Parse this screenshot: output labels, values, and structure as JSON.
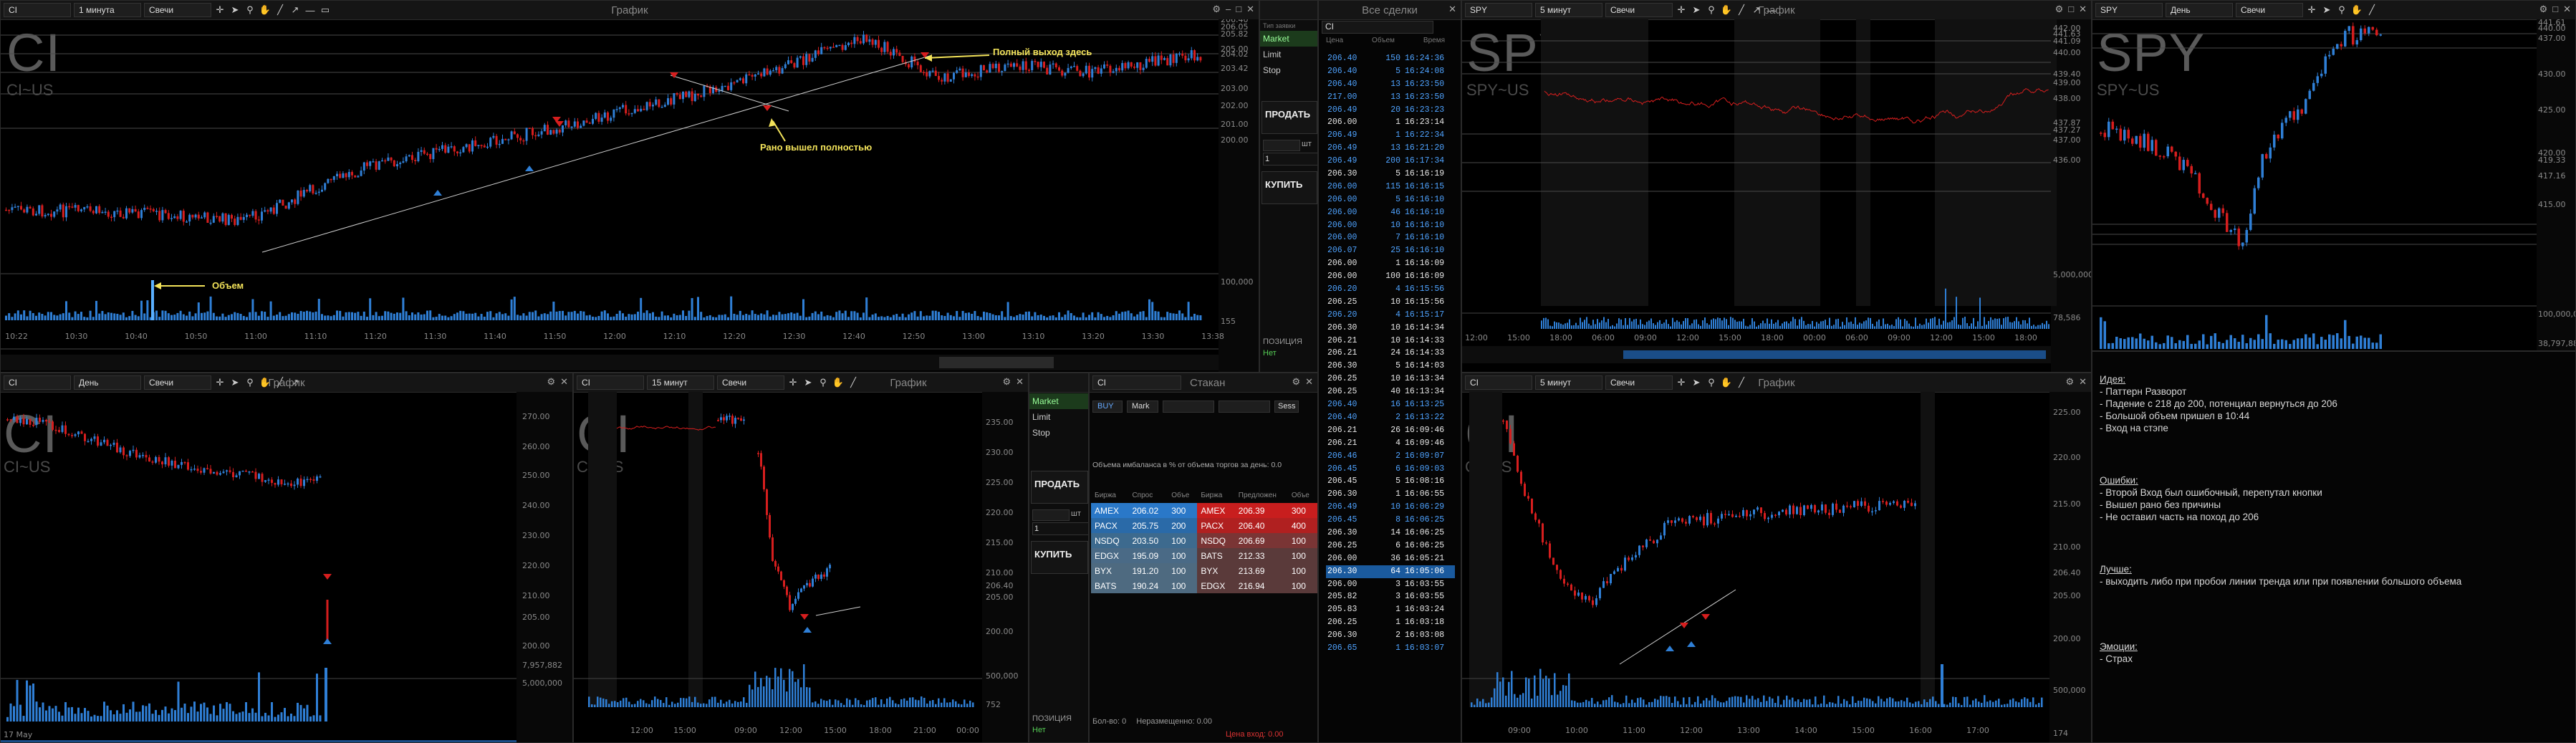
{
  "colors": {
    "up": "#2f7fd6",
    "down": "#d61e1e",
    "annotation": "#f3e35a",
    "volume": "#2f7fd6",
    "bg": "#000000"
  },
  "p1": {
    "symbol": "CI",
    "interval": "1 минута",
    "ctype": "Свечи",
    "title": "График",
    "big": "CI",
    "sub": "CI~US",
    "prices": [
      "206.40",
      "206.05",
      "205.82",
      "205.00",
      "204.02",
      "203.42",
      "203.00",
      "202.00",
      "201.00",
      "200.00"
    ],
    "vol_labels": [
      "100,000",
      "155"
    ],
    "times": [
      "10:22",
      "10:30",
      "10:40",
      "10:50",
      "11:00",
      "11:10",
      "11:20",
      "11:30",
      "11:40",
      "11:50",
      "12:00",
      "12:10",
      "12:20",
      "12:30",
      "12:40",
      "12:50",
      "13:00",
      "13:10",
      "13:20",
      "13:30",
      "13:38"
    ],
    "annotations": {
      "exit": "Полный выход здесь",
      "early": "Рано вышел полностью",
      "vol": "Объем"
    }
  },
  "p2": {
    "symbol": "CI",
    "interval": "День",
    "ctype": "Свечи",
    "title": "График",
    "big": "CI",
    "sub": "CI~US",
    "prices": [
      "270.00",
      "260.00",
      "250.00",
      "240.00",
      "230.00",
      "220.00",
      "210.00",
      "205.00",
      "200.00"
    ],
    "vol_labels": [
      "7,957,882",
      "5,000,000"
    ],
    "date": "17 May"
  },
  "p3": {
    "symbol": "CI",
    "interval": "15 минут",
    "ctype": "Свечи",
    "title": "График",
    "big": "CI",
    "sub": "CI~US",
    "prices": [
      "235.00",
      "230.00",
      "225.00",
      "220.00",
      "215.00",
      "210.00",
      "206.40",
      "205.00",
      "200.00"
    ],
    "vol_labels": [
      "500,000",
      "752"
    ],
    "times": [
      "12:00",
      "15:00",
      "09:00",
      "12:00",
      "15:00",
      "18:00",
      "21:00",
      "00:00"
    ]
  },
  "order1": {
    "types": [
      "Market",
      "Limit",
      "Stop"
    ],
    "sell": "ПРОДАТЬ",
    "buy": "КУПИТЬ",
    "qty": "1",
    "unit": "шт",
    "pos_label": "ПОЗИЦИЯ",
    "pos_value": "Нет"
  },
  "order2": {
    "types": [
      "Market",
      "Limit",
      "Stop"
    ],
    "sell": "ПРОДАТЬ",
    "buy": "КУПИТЬ",
    "qty": "1",
    "unit": "шт",
    "pos_label": "ПОЗИЦИЯ",
    "pos_value": "Нет"
  },
  "l2": {
    "symbol": "CI",
    "title": "Стакан",
    "side": "BUY",
    "mkt": "Mark",
    "ask_label": "Sess",
    "imbalance": "Объема имбаланса в % от объема торгов за день: 0.0",
    "headers": [
      "Биржа",
      "Спрос",
      "Объе",
      "Биржа",
      "Предложен",
      "Объе"
    ],
    "bids": [
      [
        "AMEX",
        "206.02",
        "300"
      ],
      [
        "PACX",
        "205.75",
        "200"
      ],
      [
        "NSDQ",
        "203.50",
        "100"
      ],
      [
        "EDGX",
        "195.09",
        "100"
      ],
      [
        "BYX",
        "191.20",
        "100"
      ],
      [
        "BATS",
        "190.24",
        "100"
      ]
    ],
    "asks": [
      [
        "AMEX",
        "206.39",
        "300"
      ],
      [
        "PACX",
        "206.40",
        "400"
      ],
      [
        "NSDQ",
        "206.69",
        "100"
      ],
      [
        "BATS",
        "212.33",
        "100"
      ],
      [
        "BYX",
        "213.69",
        "100"
      ],
      [
        "EDGX",
        "216.94",
        "100"
      ]
    ],
    "footer": [
      "Бол-во: 0",
      "Неразмещенно: 0.00",
      "Цена вход: 0.00"
    ]
  },
  "tape": {
    "title": "Все сделки",
    "symbol": "CI",
    "headers": [
      "Цена",
      "Объем",
      "Время"
    ],
    "rows": [
      [
        "206.40",
        "150",
        "16:24:36",
        "b"
      ],
      [
        "206.40",
        "5",
        "16:24:08",
        "b"
      ],
      [
        "206.40",
        "13",
        "16:23:50",
        "b"
      ],
      [
        "217.00",
        "13",
        "16:23:50",
        "b"
      ],
      [
        "206.49",
        "20",
        "16:23:23",
        "b"
      ],
      [
        "206.00",
        "1",
        "16:23:14",
        "w"
      ],
      [
        "206.49",
        "1",
        "16:22:34",
        "b"
      ],
      [
        "206.49",
        "13",
        "16:21:20",
        "b"
      ],
      [
        "206.49",
        "200",
        "16:17:34",
        "b"
      ],
      [
        "206.30",
        "5",
        "16:16:19",
        "w"
      ],
      [
        "206.00",
        "115",
        "16:16:15",
        "b"
      ],
      [
        "206.00",
        "5",
        "16:16:10",
        "b"
      ],
      [
        "206.00",
        "46",
        "16:16:10",
        "b"
      ],
      [
        "206.00",
        "10",
        "16:16:10",
        "b"
      ],
      [
        "206.00",
        "7",
        "16:16:10",
        "b"
      ],
      [
        "206.07",
        "25",
        "16:16:10",
        "b"
      ],
      [
        "206.00",
        "1",
        "16:16:09",
        "w"
      ],
      [
        "206.00",
        "100",
        "16:16:09",
        "w"
      ],
      [
        "206.20",
        "4",
        "16:15:56",
        "b"
      ],
      [
        "206.25",
        "10",
        "16:15:56",
        "w"
      ],
      [
        "206.20",
        "4",
        "16:15:17",
        "b"
      ],
      [
        "206.30",
        "10",
        "16:14:34",
        "w"
      ],
      [
        "206.21",
        "10",
        "16:14:33",
        "w"
      ],
      [
        "206.21",
        "24",
        "16:14:33",
        "w"
      ],
      [
        "206.30",
        "5",
        "16:14:03",
        "w"
      ],
      [
        "206.25",
        "10",
        "16:13:34",
        "w"
      ],
      [
        "206.25",
        "40",
        "16:13:34",
        "w"
      ],
      [
        "206.40",
        "16",
        "16:13:25",
        "b"
      ],
      [
        "206.40",
        "2",
        "16:13:22",
        "b"
      ],
      [
        "206.21",
        "26",
        "16:09:46",
        "w"
      ],
      [
        "206.21",
        "4",
        "16:09:46",
        "w"
      ],
      [
        "206.46",
        "2",
        "16:09:07",
        "b"
      ],
      [
        "206.45",
        "6",
        "16:09:03",
        "b"
      ],
      [
        "206.45",
        "5",
        "16:08:16",
        "w"
      ],
      [
        "206.30",
        "1",
        "16:06:55",
        "w"
      ],
      [
        "206.49",
        "10",
        "16:06:29",
        "b"
      ],
      [
        "206.45",
        "8",
        "16:06:25",
        "b"
      ],
      [
        "206.30",
        "14",
        "16:06:25",
        "w"
      ],
      [
        "206.25",
        "6",
        "16:06:25",
        "w"
      ],
      [
        "206.00",
        "36",
        "16:05:21",
        "w"
      ],
      [
        "206.30",
        "64",
        "16:05:06",
        "sel"
      ],
      [
        "206.00",
        "3",
        "16:03:55",
        "w"
      ],
      [
        "205.82",
        "3",
        "16:03:55",
        "w"
      ],
      [
        "205.83",
        "1",
        "16:03:24",
        "w"
      ],
      [
        "206.25",
        "1",
        "16:03:18",
        "w"
      ],
      [
        "206.30",
        "2",
        "16:03:08",
        "w"
      ],
      [
        "206.65",
        "1",
        "16:03:07",
        "b"
      ]
    ]
  },
  "p4": {
    "symbol": "SPY",
    "interval": "5 минут",
    "ctype": "Свечи",
    "title": "График",
    "big": "SPY",
    "sub": "SPY~US",
    "prices": [
      "442.00",
      "441.63",
      "441.09",
      "440.00",
      "439.40",
      "439.00",
      "438.00",
      "437.87",
      "437.27",
      "437.00",
      "436.00"
    ],
    "vol_labels": [
      "5,000,000",
      "78,586"
    ],
    "times": [
      "12:00",
      "15:00",
      "18:00",
      "06:00",
      "09:00",
      "12:00",
      "15:00",
      "18:00",
      "00:00",
      "06:00",
      "09:00",
      "12:00",
      "15:00",
      "18:00"
    ]
  },
  "p5": {
    "symbol": "SPY",
    "interval": "День",
    "ctype": "Свечи",
    "title": "",
    "big": "SPY",
    "sub": "SPY~US",
    "prices": [
      "441.61",
      "440.00",
      "437.00",
      "430.00",
      "425.00",
      "420.00",
      "419.33",
      "417.16",
      "415.00"
    ],
    "vol_labels": [
      "100,000,000",
      "38,797,888"
    ]
  },
  "p6": {
    "symbol": "CI",
    "interval": "5 минут",
    "ctype": "Свечи",
    "title": "График",
    "big": "CI",
    "sub": "CI~US",
    "prices": [
      "225.00",
      "220.00",
      "215.00",
      "210.00",
      "206.40",
      "205.00",
      "200.00"
    ],
    "vol_labels": [
      "500,000",
      "174"
    ],
    "times": [
      "09:00",
      "10:00",
      "11:00",
      "12:00",
      "13:00",
      "14:00",
      "15:00",
      "16:00",
      "17:00"
    ]
  },
  "notes": {
    "idea_h": "Идея:",
    "idea": [
      "- Паттерн Разворот",
      "- Падение с 218 до 200, потенциал вернуться до 206",
      "- Большой объем пришел в 10:44",
      "- Вход на стэпе"
    ],
    "err_h": "Ошибки:",
    "err": [
      "- Второй Вход был ошибочный, перепутал кнопки",
      "- Вышел рано без причины",
      "- Не оставил часть на поход до 206"
    ],
    "better_h": "Лучше:",
    "better": [
      "- выходить либо при пробои линии тренда или при появлении большого объема"
    ],
    "emo_h": "Эмоции:",
    "emo": [
      "- Страх"
    ]
  }
}
